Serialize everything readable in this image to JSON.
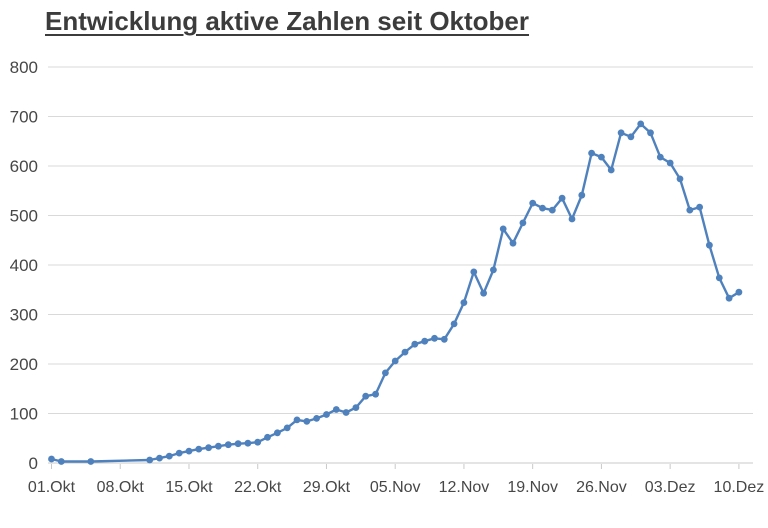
{
  "chart_data": {
    "type": "line",
    "title": "Entwicklung aktive Zahlen seit Oktober",
    "series_name": "aktive Zahlen",
    "series_color": "#4f81bd",
    "grid_color": "#d9d9d9",
    "axis_text_color": "#474747",
    "grid": true,
    "legend_position": "none",
    "ylim": [
      0,
      800
    ],
    "y_ticks": [
      0,
      100,
      200,
      300,
      400,
      500,
      600,
      700,
      800
    ],
    "x_axis_total_days": 70,
    "x_tick_labels": [
      "01.Okt",
      "08.Okt",
      "15.Okt",
      "22.Okt",
      "29.Okt",
      "05.Nov",
      "12.Nov",
      "19.Nov",
      "26.Nov",
      "03.Dez",
      "10.Dez"
    ],
    "x_tick_day_offsets": [
      0,
      7,
      14,
      21,
      28,
      35,
      42,
      49,
      56,
      63,
      70
    ],
    "points": [
      {
        "date": "01.Okt",
        "day": 0,
        "value": 8
      },
      {
        "date": "02.Okt",
        "day": 1,
        "value": 3
      },
      {
        "date": "05.Okt",
        "day": 4,
        "value": 3
      },
      {
        "date": "11.Okt",
        "day": 10,
        "value": 6
      },
      {
        "date": "12.Okt",
        "day": 11,
        "value": 10
      },
      {
        "date": "13.Okt",
        "day": 12,
        "value": 14
      },
      {
        "date": "14.Okt",
        "day": 13,
        "value": 20
      },
      {
        "date": "15.Okt",
        "day": 14,
        "value": 24
      },
      {
        "date": "16.Okt",
        "day": 15,
        "value": 28
      },
      {
        "date": "17.Okt",
        "day": 16,
        "value": 31
      },
      {
        "date": "18.Okt",
        "day": 17,
        "value": 34
      },
      {
        "date": "19.Okt",
        "day": 18,
        "value": 37
      },
      {
        "date": "20.Okt",
        "day": 19,
        "value": 39
      },
      {
        "date": "21.Okt",
        "day": 20,
        "value": 40
      },
      {
        "date": "22.Okt",
        "day": 21,
        "value": 42
      },
      {
        "date": "23.Okt",
        "day": 22,
        "value": 52
      },
      {
        "date": "24.Okt",
        "day": 23,
        "value": 61
      },
      {
        "date": "25.Okt",
        "day": 24,
        "value": 71
      },
      {
        "date": "26.Okt",
        "day": 25,
        "value": 87
      },
      {
        "date": "27.Okt",
        "day": 26,
        "value": 84
      },
      {
        "date": "28.Okt",
        "day": 27,
        "value": 90
      },
      {
        "date": "29.Okt",
        "day": 28,
        "value": 98
      },
      {
        "date": "30.Okt",
        "day": 29,
        "value": 108
      },
      {
        "date": "31.Okt",
        "day": 30,
        "value": 102
      },
      {
        "date": "01.Nov",
        "day": 31,
        "value": 112
      },
      {
        "date": "02.Nov",
        "day": 32,
        "value": 135
      },
      {
        "date": "03.Nov",
        "day": 33,
        "value": 139
      },
      {
        "date": "04.Nov",
        "day": 34,
        "value": 182
      },
      {
        "date": "05.Nov",
        "day": 35,
        "value": 206
      },
      {
        "date": "06.Nov",
        "day": 36,
        "value": 224
      },
      {
        "date": "07.Nov",
        "day": 37,
        "value": 240
      },
      {
        "date": "08.Nov",
        "day": 38,
        "value": 246
      },
      {
        "date": "09.Nov",
        "day": 39,
        "value": 252
      },
      {
        "date": "10.Nov",
        "day": 40,
        "value": 250
      },
      {
        "date": "11.Nov",
        "day": 41,
        "value": 281
      },
      {
        "date": "12.Nov",
        "day": 42,
        "value": 324
      },
      {
        "date": "13.Nov",
        "day": 43,
        "value": 386
      },
      {
        "date": "14.Nov",
        "day": 44,
        "value": 343
      },
      {
        "date": "15.Nov",
        "day": 45,
        "value": 390
      },
      {
        "date": "16.Nov",
        "day": 46,
        "value": 473
      },
      {
        "date": "17.Nov",
        "day": 47,
        "value": 444
      },
      {
        "date": "18.Nov",
        "day": 48,
        "value": 485
      },
      {
        "date": "19.Nov",
        "day": 49,
        "value": 525
      },
      {
        "date": "20.Nov",
        "day": 50,
        "value": 515
      },
      {
        "date": "21.Nov",
        "day": 51,
        "value": 511
      },
      {
        "date": "22.Nov",
        "day": 52,
        "value": 535
      },
      {
        "date": "23.Nov",
        "day": 53,
        "value": 493
      },
      {
        "date": "24.Nov",
        "day": 54,
        "value": 541
      },
      {
        "date": "25.Nov",
        "day": 55,
        "value": 626
      },
      {
        "date": "26.Nov",
        "day": 56,
        "value": 618
      },
      {
        "date": "27.Nov",
        "day": 57,
        "value": 592
      },
      {
        "date": "28.Nov",
        "day": 58,
        "value": 667
      },
      {
        "date": "29.Nov",
        "day": 59,
        "value": 659
      },
      {
        "date": "30.Nov",
        "day": 60,
        "value": 685
      },
      {
        "date": "01.Dez",
        "day": 61,
        "value": 667
      },
      {
        "date": "02.Dez",
        "day": 62,
        "value": 618
      },
      {
        "date": "03.Dez",
        "day": 63,
        "value": 606
      },
      {
        "date": "04.Dez",
        "day": 64,
        "value": 574
      },
      {
        "date": "05.Dez",
        "day": 65,
        "value": 511
      },
      {
        "date": "06.Dez",
        "day": 66,
        "value": 517
      },
      {
        "date": "07.Dez",
        "day": 67,
        "value": 440
      },
      {
        "date": "08.Dez",
        "day": 68,
        "value": 374
      },
      {
        "date": "09.Dez",
        "day": 69,
        "value": 333
      },
      {
        "date": "10.Dez",
        "day": 70,
        "value": 345
      }
    ]
  }
}
